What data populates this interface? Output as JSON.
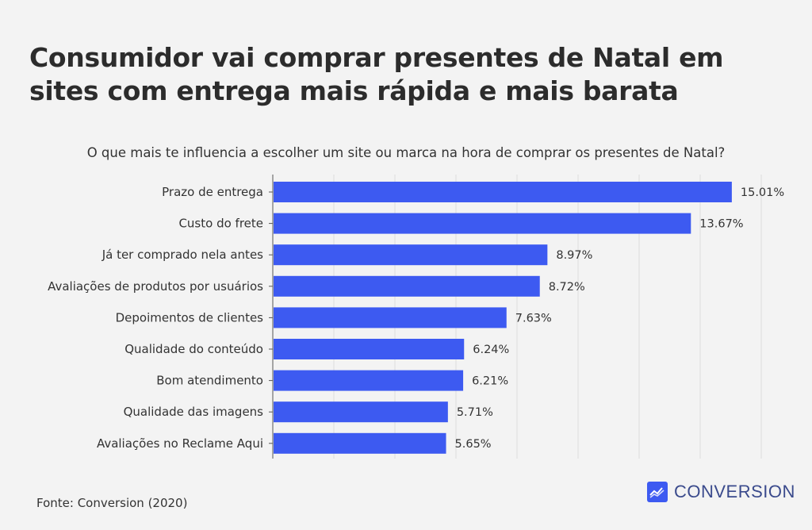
{
  "header": {
    "title": "Consumidor vai comprar presentes de Natal em sites com entrega mais rápida e mais barata"
  },
  "chart_data": {
    "type": "bar",
    "orientation": "horizontal",
    "title": "O que mais te influencia a escolher um site ou marca na hora de comprar os presentes de Natal?",
    "categories": [
      "Prazo de entrega",
      "Custo do frete",
      "Já ter comprado nela antes",
      "Avaliações de produtos por usuários",
      "Depoimentos de clientes",
      "Qualidade do conteúdo",
      "Bom atendimento",
      "Qualidade das imagens",
      "Avaliações no Reclame Aqui"
    ],
    "values": [
      15.01,
      13.67,
      8.97,
      8.72,
      7.63,
      6.24,
      6.21,
      5.71,
      5.65
    ],
    "value_labels": [
      "15.01%",
      "13.67%",
      "8.97%",
      "8.72%",
      "7.63%",
      "6.24%",
      "6.21%",
      "5.71%",
      "5.65%"
    ],
    "xlim": [
      0,
      16
    ],
    "xlabel": "",
    "ylabel": "",
    "grid": true,
    "bar_color": "#3d5af1"
  },
  "footer": {
    "source": "Fonte: Conversion (2020)",
    "brand": "CONVERSION"
  },
  "colors": {
    "background": "#f3f3f3",
    "brand": "#3d5af1",
    "brand_text": "#3a4a8c"
  },
  "icons": {
    "brand_logo": "chart-trend-icon"
  }
}
